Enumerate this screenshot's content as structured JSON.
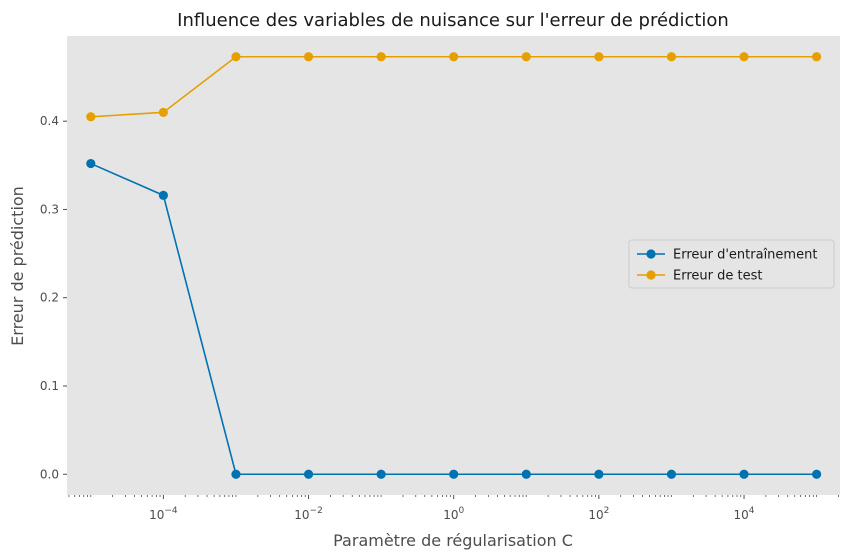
{
  "chart_data": {
    "type": "line",
    "title": "Influence des variables de nuisance sur l'erreur de prédiction",
    "xlabel": "Paramètre de régularisation C",
    "ylabel": "Erreur de prédiction",
    "xscale": "log",
    "x": [
      1e-05,
      0.0001,
      0.001,
      0.01,
      0.1,
      1,
      10,
      100,
      1000,
      10000,
      100000
    ],
    "xlim": [
      4.7e-06,
      210000
    ],
    "ylim": [
      -0.0235,
      0.4965
    ],
    "x_ticks": [
      {
        "value": 0.0001,
        "base": "10",
        "exp": "−4"
      },
      {
        "value": 0.01,
        "base": "10",
        "exp": "−2"
      },
      {
        "value": 1,
        "base": "10",
        "exp": "0"
      },
      {
        "value": 100,
        "base": "10",
        "exp": "2"
      },
      {
        "value": 10000,
        "base": "10",
        "exp": "4"
      }
    ],
    "y_ticks": [
      {
        "value": 0.0,
        "label": "0.0"
      },
      {
        "value": 0.1,
        "label": "0.1"
      },
      {
        "value": 0.2,
        "label": "0.2"
      },
      {
        "value": 0.3,
        "label": "0.3"
      },
      {
        "value": 0.4,
        "label": "0.4"
      }
    ],
    "grid": false,
    "legend_position": "center-right",
    "background": "#e5e5e5",
    "series": [
      {
        "name": "Erreur d'entraînement",
        "color": "#0072b2",
        "values": [
          0.352,
          0.316,
          0.0,
          0.0,
          0.0,
          0.0,
          0.0,
          0.0,
          0.0,
          0.0,
          0.0
        ]
      },
      {
        "name": "Erreur de test",
        "color": "#e69f00",
        "values": [
          0.405,
          0.41,
          0.473,
          0.473,
          0.473,
          0.473,
          0.473,
          0.473,
          0.473,
          0.473,
          0.473
        ]
      }
    ]
  }
}
